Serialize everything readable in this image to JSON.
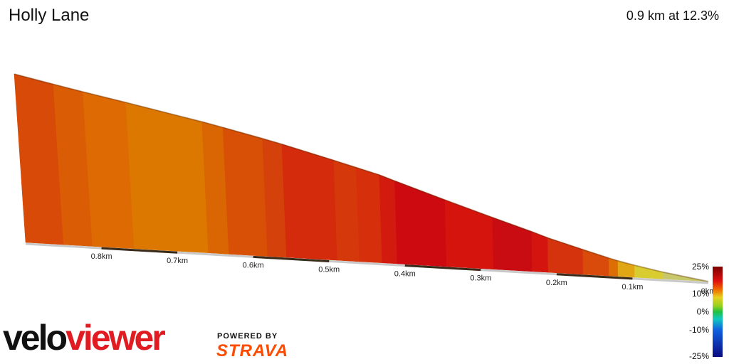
{
  "header": {
    "title": "Holly Lane",
    "summary": "0.9 km at 12.3%"
  },
  "branding": {
    "logo_part1": "velo",
    "logo_part2": "viewer",
    "powered_by": "POWERED BY",
    "strava": "STRAVA"
  },
  "colors": {
    "logo_red": "#e11b22",
    "strava_orange": "#fc4c02"
  },
  "chart_data": {
    "type": "area",
    "title": "Holly Lane",
    "x_direction": "reversed",
    "xlim": [
      0.9,
      0
    ],
    "x_tick_labels": [
      "0.8km",
      "0.7km",
      "0.6km",
      "0.5km",
      "0.4km",
      "0.3km",
      "0.2km",
      "0.1km",
      "0km"
    ],
    "x_ticks": [
      0.8,
      0.7,
      0.6,
      0.5,
      0.4,
      0.3,
      0.2,
      0.1,
      0
    ],
    "segments": [
      {
        "x0": 0.9,
        "x1": 0.85,
        "h0": 110.7,
        "h1": 105.4,
        "color": "#d84a08"
      },
      {
        "x0": 0.85,
        "x1": 0.812,
        "h0": 105.4,
        "h1": 101.5,
        "color": "#da5c05"
      },
      {
        "x0": 0.812,
        "x1": 0.757,
        "h0": 101.5,
        "h1": 96.1,
        "color": "#dd6a02"
      },
      {
        "x0": 0.757,
        "x1": 0.659,
        "h0": 96.1,
        "h1": 86.2,
        "color": "#dc7800"
      },
      {
        "x0": 0.659,
        "x1": 0.632,
        "h0": 86.2,
        "h1": 83.2,
        "color": "#da6603"
      },
      {
        "x0": 0.632,
        "x1": 0.581,
        "h0": 83.2,
        "h1": 77.4,
        "color": "#d85006"
      },
      {
        "x0": 0.581,
        "x1": 0.556,
        "h0": 77.4,
        "h1": 74.4,
        "color": "#d5410a"
      },
      {
        "x0": 0.556,
        "x1": 0.489,
        "h0": 74.4,
        "h1": 65.7,
        "color": "#d32b0c"
      },
      {
        "x0": 0.489,
        "x1": 0.46,
        "h0": 65.7,
        "h1": 61.8,
        "color": "#d5380a"
      },
      {
        "x0": 0.46,
        "x1": 0.43,
        "h0": 61.8,
        "h1": 57.8,
        "color": "#d62f0c"
      },
      {
        "x0": 0.43,
        "x1": 0.41,
        "h0": 57.8,
        "h1": 54.4,
        "color": "#d31a0e"
      },
      {
        "x0": 0.41,
        "x1": 0.345,
        "h0": 54.4,
        "h1": 43.8,
        "color": "#cc0a10"
      },
      {
        "x0": 0.345,
        "x1": 0.283,
        "h0": 43.8,
        "h1": 34.0,
        "color": "#d5140e"
      },
      {
        "x0": 0.283,
        "x1": 0.232,
        "h0": 34.0,
        "h1": 26.2,
        "color": "#c90b12"
      },
      {
        "x0": 0.232,
        "x1": 0.211,
        "h0": 26.2,
        "h1": 22.7,
        "color": "#d4150f"
      },
      {
        "x0": 0.211,
        "x1": 0.165,
        "h0": 22.7,
        "h1": 16.3,
        "color": "#d5330d"
      },
      {
        "x0": 0.165,
        "x1": 0.131,
        "h0": 16.3,
        "h1": 11.7,
        "color": "#d84b0a"
      },
      {
        "x0": 0.131,
        "x1": 0.119,
        "h0": 11.7,
        "h1": 10.2,
        "color": "#dd6d05"
      },
      {
        "x0": 0.119,
        "x1": 0.097,
        "h0": 10.2,
        "h1": 7.9,
        "color": "#e0a614"
      },
      {
        "x0": 0.097,
        "x1": 0.06,
        "h0": 7.9,
        "h1": 4.5,
        "color": "#d9cc30"
      },
      {
        "x0": 0.06,
        "x1": 0.0,
        "h0": 4.5,
        "h1": 0.0,
        "color": "#c8c86a"
      }
    ],
    "color_scale": {
      "labels": [
        "25%",
        "10%",
        "0%",
        "-10%",
        "-25%"
      ],
      "values": [
        25,
        10,
        0,
        -10,
        -25
      ],
      "stops": [
        {
          "v": 25,
          "c": "#7a0000"
        },
        {
          "v": 17,
          "c": "#e01010"
        },
        {
          "v": 12,
          "c": "#f07000"
        },
        {
          "v": 8,
          "c": "#e8d020"
        },
        {
          "v": 3,
          "c": "#90d020"
        },
        {
          "v": 0,
          "c": "#20c040"
        },
        {
          "v": -4,
          "c": "#10c8c0"
        },
        {
          "v": -10,
          "c": "#1060e0"
        },
        {
          "v": -25,
          "c": "#0a0a80"
        }
      ]
    }
  }
}
